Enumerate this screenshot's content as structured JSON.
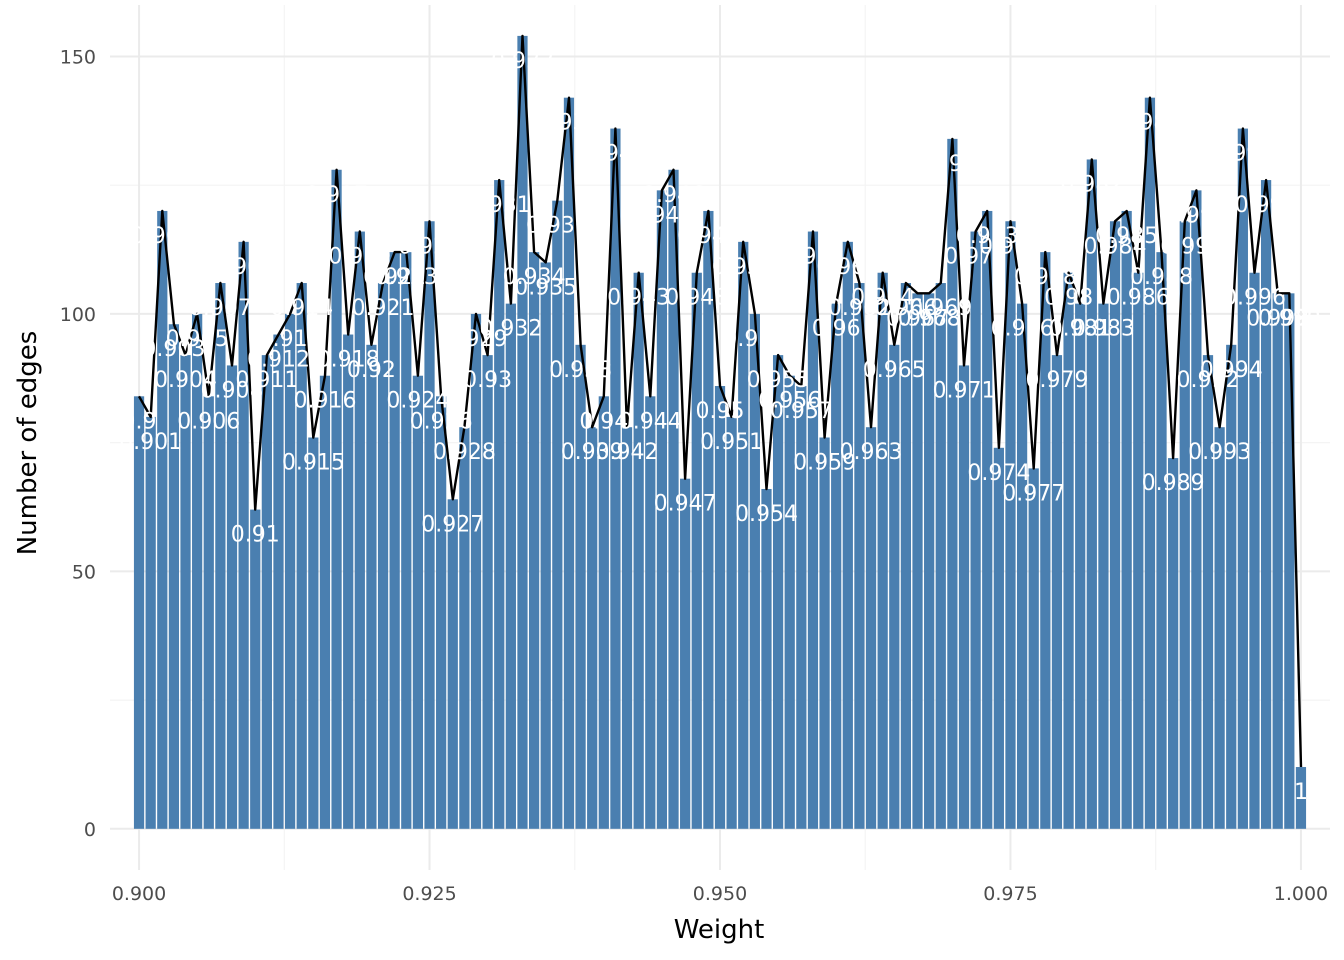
{
  "chart_data": {
    "type": "bar",
    "xlabel": "Weight",
    "ylabel": "Number of edges",
    "xlim": [
      0.8975,
      1.0025
    ],
    "ylim": [
      -8,
      160
    ],
    "x_ticks": [
      "0.900",
      "0.925",
      "0.950",
      "0.975",
      "1.000"
    ],
    "y_ticks": [
      "0",
      "50",
      "100",
      "150"
    ],
    "bar_color": "#4a7fb0",
    "line_color": "#000000",
    "grid": true,
    "x": [
      0.9,
      0.901,
      0.902,
      0.903,
      0.904,
      0.905,
      0.906,
      0.907,
      0.908,
      0.909,
      0.91,
      0.911,
      0.912,
      0.913,
      0.914,
      0.915,
      0.916,
      0.917,
      0.918,
      0.919,
      0.92,
      0.921,
      0.922,
      0.923,
      0.924,
      0.925,
      0.926,
      0.927,
      0.928,
      0.929,
      0.93,
      0.931,
      0.932,
      0.933,
      0.934,
      0.935,
      0.936,
      0.937,
      0.938,
      0.939,
      0.94,
      0.941,
      0.942,
      0.943,
      0.944,
      0.945,
      0.946,
      0.947,
      0.948,
      0.949,
      0.95,
      0.951,
      0.952,
      0.953,
      0.954,
      0.955,
      0.956,
      0.957,
      0.958,
      0.959,
      0.96,
      0.961,
      0.962,
      0.963,
      0.964,
      0.965,
      0.966,
      0.967,
      0.968,
      0.969,
      0.97,
      0.971,
      0.972,
      0.973,
      0.974,
      0.975,
      0.976,
      0.977,
      0.978,
      0.979,
      0.98,
      0.981,
      0.982,
      0.983,
      0.984,
      0.985,
      0.986,
      0.987,
      0.988,
      0.989,
      0.99,
      0.991,
      0.992,
      0.993,
      0.994,
      0.995,
      0.996,
      0.997,
      0.998,
      0.999,
      1.0
    ],
    "values": [
      84,
      80,
      120,
      98,
      92,
      100,
      84,
      106,
      90,
      114,
      62,
      92,
      96,
      100,
      106,
      76,
      88,
      128,
      96,
      116,
      94,
      106,
      112,
      112,
      88,
      118,
      84,
      64,
      78,
      100,
      92,
      126,
      102,
      154,
      112,
      110,
      122,
      142,
      94,
      78,
      84,
      136,
      78,
      108,
      84,
      124,
      128,
      68,
      108,
      120,
      86,
      80,
      114,
      100,
      66,
      92,
      88,
      86,
      116,
      76,
      102,
      114,
      106,
      78,
      108,
      94,
      106,
      104,
      104,
      106,
      134,
      90,
      116,
      120,
      74,
      118,
      102,
      70,
      112,
      92,
      108,
      102,
      130,
      102,
      118,
      120,
      108,
      142,
      112,
      72,
      118,
      124,
      92,
      78,
      94,
      136,
      108,
      126,
      104,
      104,
      12
    ],
    "labels": [
      "0.9",
      "0.901",
      "0.902",
      "0.903",
      "0.904",
      "0.905",
      "0.906",
      "0.907",
      "0.908",
      "0.909",
      "0.91",
      "0.911",
      "0.912",
      "0.913",
      "0.914",
      "0.915",
      "0.916",
      "0.917",
      "0.918",
      "0.919",
      "0.92",
      "0.921",
      "0.922",
      "0.923",
      "0.924",
      "0.925",
      "0.926",
      "0.927",
      "0.928",
      "0.929",
      "0.93",
      "0.931",
      "0.932",
      "0.933",
      "0.934",
      "0.935",
      "0.936",
      "0.937",
      "0.938",
      "0.939",
      "0.94",
      "0.941",
      "0.942",
      "0.943",
      "0.944",
      "0.945",
      "0.946",
      "0.947",
      "0.948",
      "0.949",
      "0.95",
      "0.951",
      "0.952",
      "0.953",
      "0.954",
      "0.955",
      "0.956",
      "0.957",
      "0.958",
      "0.959",
      "0.96",
      "0.961",
      "0.962",
      "0.963",
      "0.964",
      "0.965",
      "0.966",
      "0.967",
      "0.968",
      "0.969",
      "0.97",
      "0.971",
      "0.972",
      "0.973",
      "0.974",
      "0.975",
      "0.976",
      "0.977",
      "0.978",
      "0.979",
      "0.98",
      "0.981",
      "0.982",
      "0.983",
      "0.984",
      "0.985",
      "0.986",
      "0.987",
      "0.988",
      "0.989",
      "0.99",
      "0.991",
      "0.992",
      "0.993",
      "0.994",
      "0.995",
      "0.996",
      "0.997",
      "0.998",
      "0.999",
      "1"
    ]
  }
}
